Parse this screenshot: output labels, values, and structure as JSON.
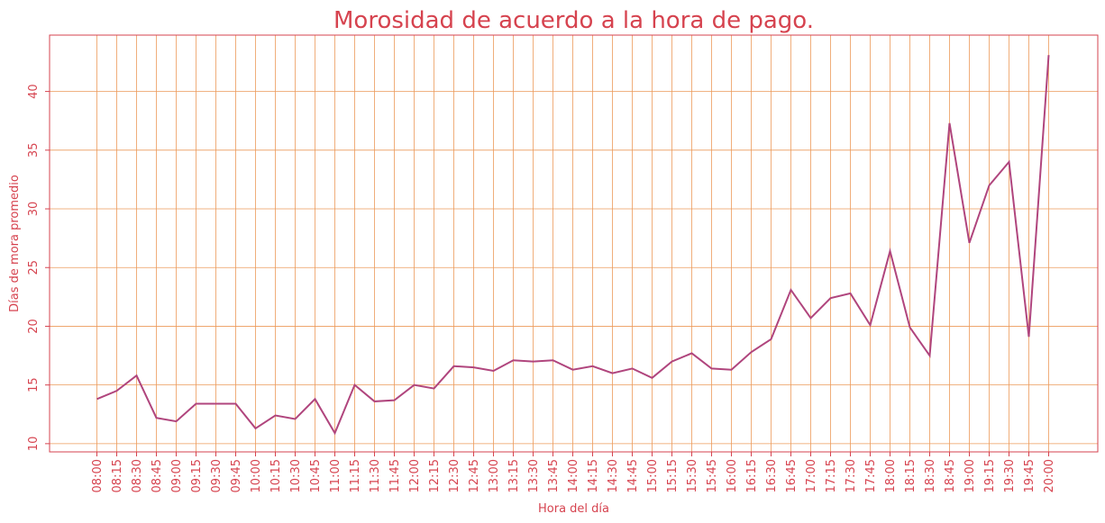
{
  "colors": {
    "text": "#d6434f",
    "grid": "#ec9a5a",
    "line": "#b0457d",
    "frame": "#d6434f",
    "background": "#ffffff"
  },
  "chart_data": {
    "type": "line",
    "title": "Morosidad de acuerdo a la hora de pago.",
    "xlabel": "Hora del día",
    "ylabel": "Días de mora promedio",
    "grid": true,
    "categories": [
      "08:00",
      "08:15",
      "08:30",
      "08:45",
      "09:00",
      "09:15",
      "09:30",
      "09:45",
      "10:00",
      "10:15",
      "10:30",
      "10:45",
      "11:00",
      "11:15",
      "11:30",
      "11:45",
      "12:00",
      "12:15",
      "12:30",
      "12:45",
      "13:00",
      "13:15",
      "13:30",
      "13:45",
      "14:00",
      "14:15",
      "14:30",
      "14:45",
      "15:00",
      "15:15",
      "15:30",
      "15:45",
      "16:00",
      "16:15",
      "16:30",
      "16:45",
      "17:00",
      "17:15",
      "17:30",
      "17:45",
      "18:00",
      "18:15",
      "18:30",
      "18:45",
      "19:00",
      "19:15",
      "19:30",
      "19:45",
      "20:00"
    ],
    "values": [
      13.8,
      14.5,
      15.8,
      12.2,
      11.9,
      13.4,
      13.4,
      13.4,
      11.3,
      12.4,
      12.1,
      13.8,
      10.9,
      15.0,
      13.6,
      13.7,
      15.0,
      14.7,
      16.6,
      16.5,
      16.2,
      17.1,
      17.0,
      17.1,
      16.3,
      16.6,
      16.0,
      16.4,
      15.6,
      17.0,
      17.7,
      16.4,
      16.3,
      17.8,
      18.9,
      23.1,
      20.7,
      22.4,
      22.8,
      20.1,
      26.4,
      19.9,
      17.5,
      37.3,
      27.1,
      32.0,
      34.0,
      19.1,
      43.1
    ],
    "yticks": [
      10,
      15,
      20,
      25,
      30,
      35,
      40
    ],
    "ylim": [
      9.3,
      44.8
    ]
  }
}
